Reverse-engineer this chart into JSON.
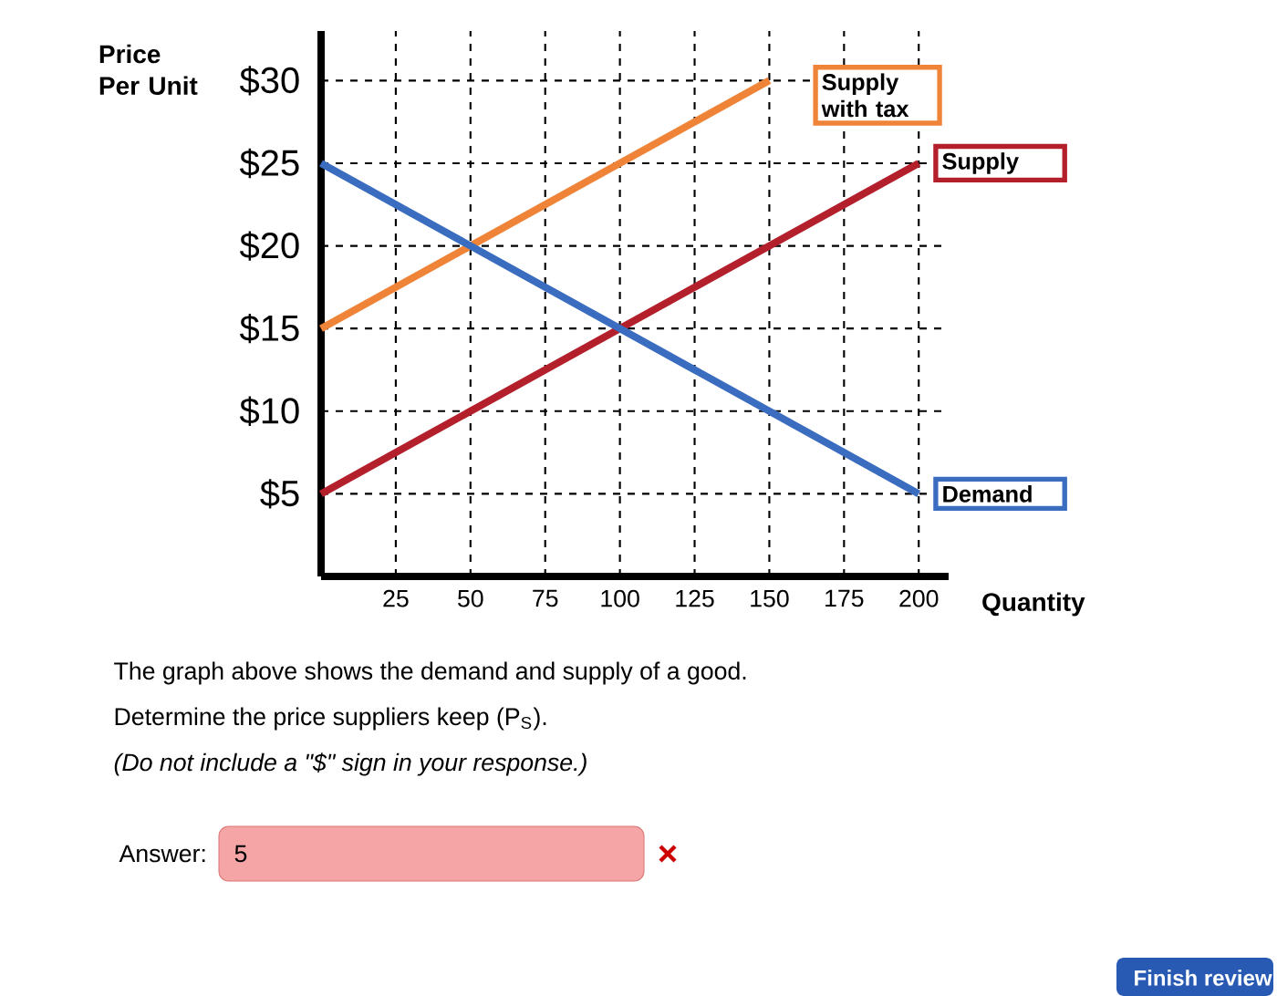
{
  "chart_data": {
    "type": "line",
    "xlabel": "Quantity",
    "ylabel": "Price Per Unit",
    "x": [
      0,
      200
    ],
    "series": [
      {
        "name": "Supply with tax",
        "color": "#ef8438",
        "x": [
          0,
          150
        ],
        "values": [
          15,
          30
        ]
      },
      {
        "name": "Supply",
        "color": "#b3202c",
        "values": [
          5,
          25
        ]
      },
      {
        "name": "Demand",
        "color": "#3a6cc0",
        "values": [
          25,
          5
        ]
      }
    ],
    "xlim": [
      0,
      210
    ],
    "ylim": [
      0,
      33
    ],
    "xticks": [
      25,
      50,
      75,
      100,
      125,
      150,
      175,
      200
    ],
    "yticks": [
      {
        "value": 5,
        "label": "$5"
      },
      {
        "value": 10,
        "label": "$10"
      },
      {
        "value": 15,
        "label": "$15"
      },
      {
        "value": 20,
        "label": "$20"
      },
      {
        "value": 25,
        "label": "$25"
      },
      {
        "value": 30,
        "label": "$30"
      }
    ],
    "grid": true,
    "marker": "none",
    "line_style": "solid",
    "annotations": [
      "The graph above shows the demand and supply of a good.",
      "Determine the price suppliers keep (P$_{S}$).",
      "(Do not include a \"$\" sign in your response.)",
      "Answer:",
      "5",
      "Finish review"
    ]
  }
}
